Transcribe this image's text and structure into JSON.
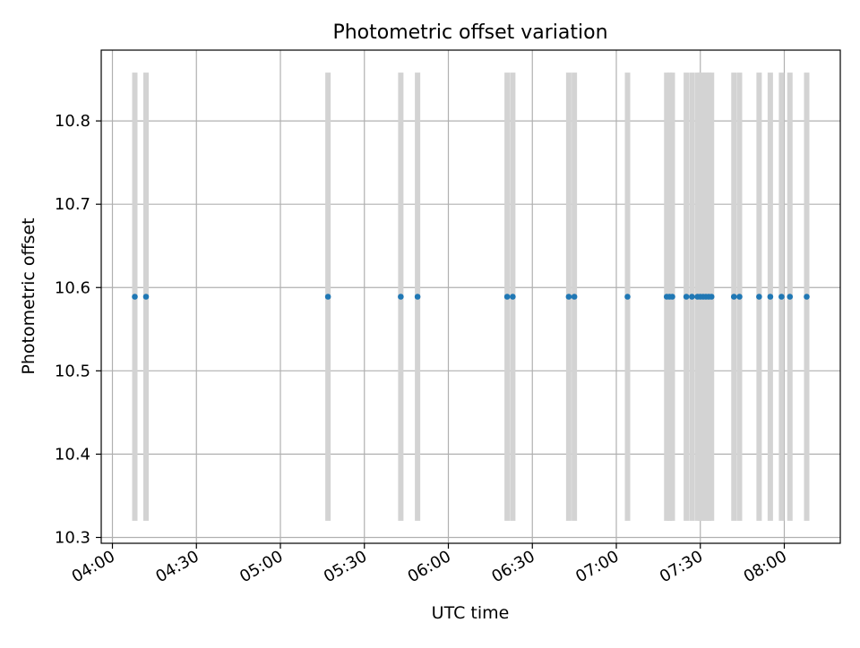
{
  "chart_data": {
    "type": "scatter",
    "title": "Photometric offset variation",
    "xlabel": "UTC time",
    "ylabel": "Photometric offset",
    "x_type": "time",
    "xlim": [
      "03:56",
      "08:20"
    ],
    "ylim": [
      10.293,
      10.885
    ],
    "x_ticks": [
      "04:00",
      "04:30",
      "05:00",
      "05:30",
      "06:00",
      "06:30",
      "07:00",
      "07:30",
      "08:00"
    ],
    "y_ticks": [
      "10.3",
      "10.4",
      "10.5",
      "10.6",
      "10.7",
      "10.8"
    ],
    "grid": true,
    "marker_color": "#1f77b4",
    "errorbar_color": "#d3d3d3",
    "error_range": [
      10.32,
      10.858
    ],
    "series": [
      {
        "x": [
          "04:08",
          "04:12",
          "05:17",
          "05:43",
          "05:49",
          "06:21",
          "06:23",
          "06:43",
          "06:45",
          "07:04",
          "07:18",
          "07:19",
          "07:20",
          "07:25",
          "07:27",
          "07:29",
          "07:30",
          "07:31",
          "07:32",
          "07:33",
          "07:34",
          "07:42",
          "07:44",
          "07:51",
          "07:55",
          "07:59",
          "08:02",
          "08:08"
        ],
        "y": [
          10.589,
          10.589,
          10.589,
          10.589,
          10.589,
          10.589,
          10.589,
          10.589,
          10.589,
          10.589,
          10.589,
          10.589,
          10.589,
          10.589,
          10.589,
          10.589,
          10.589,
          10.589,
          10.589,
          10.589,
          10.589,
          10.589,
          10.589,
          10.589,
          10.589,
          10.589,
          10.589,
          10.589
        ]
      }
    ]
  }
}
